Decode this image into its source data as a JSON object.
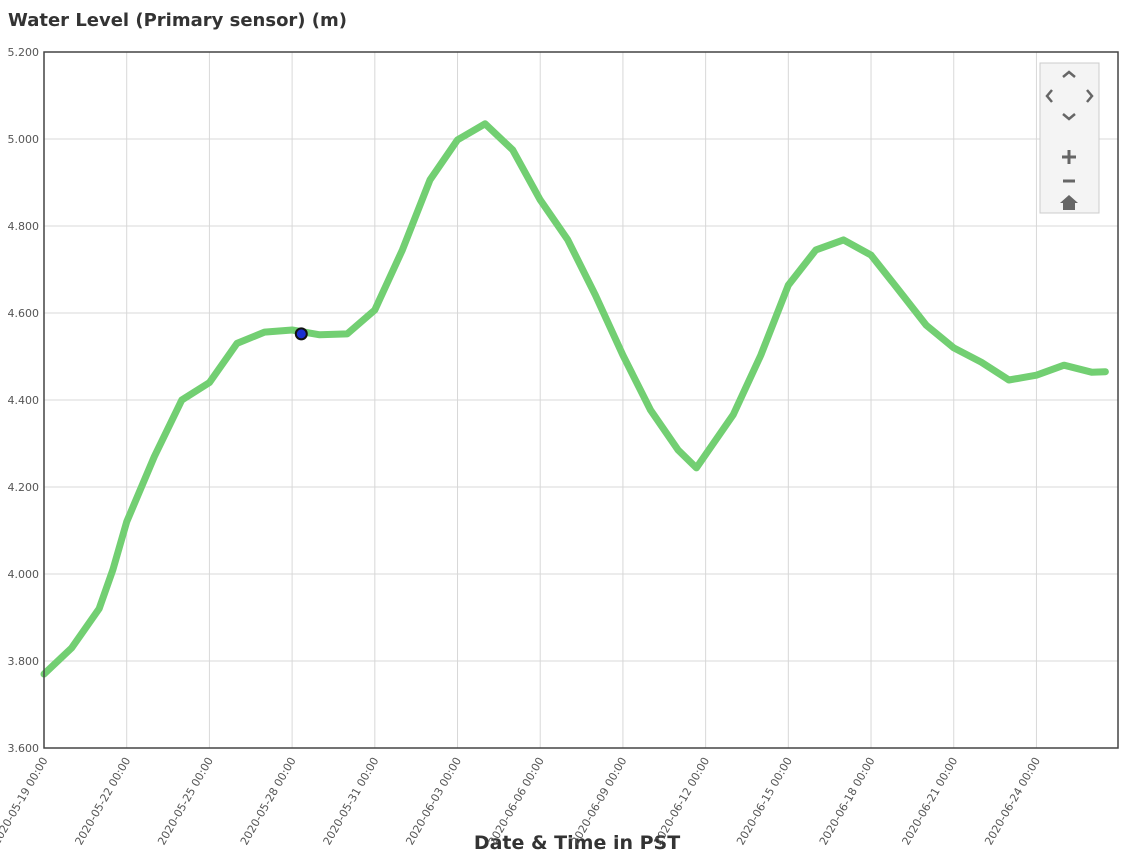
{
  "chart_data": {
    "type": "line",
    "title": "Water Level (Primary sensor) (m)",
    "x_label": "Date & Time in PST",
    "x": [
      "2020-05-19 00:00",
      "2020-05-20 00:00",
      "2020-05-21 00:00",
      "2020-05-21 12:00",
      "2020-05-22 00:00",
      "2020-05-23 00:00",
      "2020-05-24 00:00",
      "2020-05-25 00:00",
      "2020-05-26 00:00",
      "2020-05-27 00:00",
      "2020-05-28 00:00",
      "2020-05-29 00:00",
      "2020-05-30 00:00",
      "2020-05-31 00:00",
      "2020-06-01 00:00",
      "2020-06-02 00:00",
      "2020-06-03 00:00",
      "2020-06-04 00:00",
      "2020-06-05 00:00",
      "2020-06-06 00:00",
      "2020-06-07 00:00",
      "2020-06-08 00:00",
      "2020-06-09 00:00",
      "2020-06-10 00:00",
      "2020-06-11 00:00",
      "2020-06-11 16:00",
      "2020-06-13 00:00",
      "2020-06-14 00:00",
      "2020-06-15 00:00",
      "2020-06-16 00:00",
      "2020-06-17 00:00",
      "2020-06-18 00:00",
      "2020-06-19 00:00",
      "2020-06-20 00:00",
      "2020-06-21 00:00",
      "2020-06-22 00:00",
      "2020-06-23 00:00",
      "2020-06-24 00:00",
      "2020-06-25 00:00",
      "2020-06-26 00:00",
      "2020-06-26 12:00"
    ],
    "series": [
      {
        "name": "Water Level (Primary sensor)",
        "color": "#72cf72",
        "values": [
          3.77,
          3.83,
          3.92,
          4.01,
          4.12,
          4.27,
          4.4,
          4.44,
          4.53,
          4.556,
          4.561,
          4.55,
          4.552,
          4.607,
          4.745,
          4.906,
          4.998,
          5.035,
          4.975,
          4.86,
          4.768,
          4.641,
          4.503,
          4.377,
          4.285,
          4.244,
          4.366,
          4.503,
          4.664,
          4.745,
          4.768,
          4.733,
          4.653,
          4.572,
          4.52,
          4.487,
          4.446,
          4.457,
          4.48,
          4.464,
          4.465
        ]
      }
    ],
    "highlight": {
      "x": "2020-05-28 08:00",
      "y": 4.552,
      "color": "#1a2fd0"
    },
    "xlim": [
      "2020-05-19 00:00",
      "2020-06-26 23:00"
    ],
    "xticks": [
      "2020-05-19 00:00",
      "2020-05-22 00:00",
      "2020-05-25 00:00",
      "2020-05-28 00:00",
      "2020-05-31 00:00",
      "2020-06-03 00:00",
      "2020-06-06 00:00",
      "2020-06-09 00:00",
      "2020-06-12 00:00",
      "2020-06-15 00:00",
      "2020-06-18 00:00",
      "2020-06-21 00:00",
      "2020-06-24 00:00"
    ],
    "ylim": [
      3.6,
      5.2
    ],
    "yticks": [
      {
        "value": 3.6,
        "label": "3.600"
      },
      {
        "value": 3.8,
        "label": "3.800"
      },
      {
        "value": 4,
        "label": "4.000"
      },
      {
        "value": 4.2,
        "label": "4.200"
      },
      {
        "value": 4.4,
        "label": "4.400"
      },
      {
        "value": 4.6,
        "label": "4.600"
      },
      {
        "value": 4.8,
        "label": "4.800"
      },
      {
        "value": 5,
        "label": "5.000"
      },
      {
        "value": 5.2,
        "label": "5.200"
      }
    ],
    "grid": true
  }
}
